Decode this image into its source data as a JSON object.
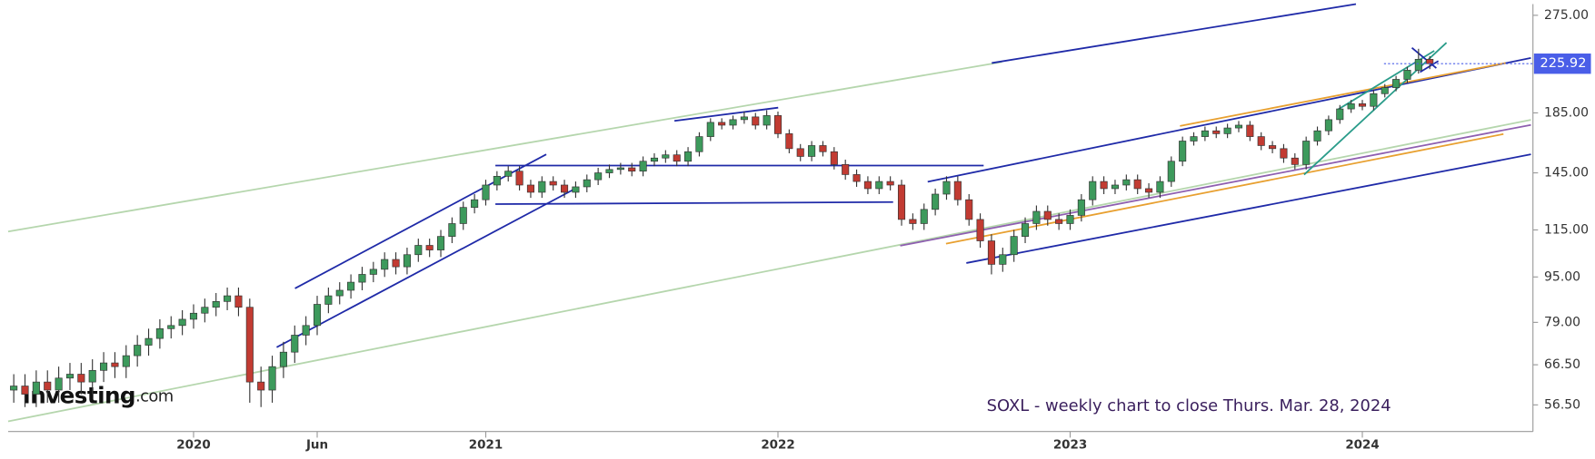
{
  "chart_data": {
    "type": "candlestick",
    "annotation": "SOXL - weekly chart to close Thurs. Mar. 28, 2024",
    "logo": "Investing",
    "logo_suffix": ".com",
    "log_scale": true,
    "up_color": "#3d9a5c",
    "down_color": "#c23b32",
    "ylim": [
      50.7,
      286.6
    ],
    "yticks": [
      {
        "value": 56.5,
        "label": "56.50"
      },
      {
        "value": 66.5,
        "label": "66.50"
      },
      {
        "value": 79,
        "label": "79.00"
      },
      {
        "value": 95,
        "label": "95.00"
      },
      {
        "value": 115,
        "label": "115.00"
      },
      {
        "value": 145,
        "label": "145.00"
      },
      {
        "value": 185,
        "label": "185.00"
      },
      {
        "value": 275,
        "label": "275.00"
      }
    ],
    "xlim": [
      -0.5,
      135
    ],
    "xticks": [
      {
        "value": 16,
        "label": "2020"
      },
      {
        "value": 27,
        "label": "Jun"
      },
      {
        "value": 42,
        "label": "2021"
      },
      {
        "value": 68,
        "label": "2022"
      },
      {
        "value": 94,
        "label": "2023"
      },
      {
        "value": 120,
        "label": "2024"
      }
    ],
    "open": [
      60,
      61,
      59,
      62,
      60,
      63,
      64,
      62,
      65,
      67,
      66,
      69,
      72,
      74,
      77,
      78,
      80,
      82,
      84,
      86,
      88,
      84,
      62,
      60,
      66,
      70,
      75,
      78,
      85,
      88,
      90,
      93,
      96,
      98,
      102,
      99,
      104,
      108,
      106,
      112,
      118,
      126,
      130,
      138,
      143,
      146,
      138,
      134,
      140,
      138,
      134,
      137,
      141,
      145,
      147,
      148,
      146,
      152,
      154,
      156,
      152,
      158,
      168,
      178,
      176,
      180,
      182,
      176,
      183,
      170,
      160,
      155,
      162,
      158,
      150,
      144,
      140,
      136,
      140,
      138,
      120,
      118,
      125,
      133,
      140,
      130,
      120,
      110,
      100,
      104,
      112,
      118,
      124,
      120,
      118,
      122,
      130,
      140,
      136,
      138,
      141,
      136,
      134,
      140,
      152,
      165,
      168,
      172,
      170,
      174,
      176,
      168,
      162,
      160,
      154,
      150,
      165,
      172,
      180,
      188,
      192,
      190,
      200,
      205,
      212,
      220,
      230
    ],
    "high": [
      64,
      64,
      65,
      65,
      66,
      67,
      67,
      68,
      70,
      70,
      72,
      75,
      77,
      80,
      81,
      83,
      85,
      87,
      89,
      91,
      91,
      87,
      66,
      69,
      73,
      78,
      81,
      88,
      91,
      93,
      96,
      99,
      101,
      105,
      105,
      107,
      111,
      111,
      115,
      121,
      129,
      133,
      141,
      146,
      149,
      149,
      141,
      143,
      143,
      141,
      140,
      144,
      148,
      150,
      151,
      151,
      155,
      157,
      159,
      159,
      161,
      171,
      181,
      181,
      183,
      186,
      185,
      187,
      186,
      173,
      163,
      165,
      165,
      161,
      153,
      147,
      143,
      143,
      143,
      141,
      123,
      128,
      136,
      143,
      143,
      133,
      123,
      113,
      107,
      115,
      121,
      127,
      127,
      123,
      125,
      133,
      143,
      143,
      141,
      144,
      144,
      139,
      143,
      155,
      168,
      171,
      175,
      175,
      177,
      179,
      179,
      171,
      165,
      163,
      157,
      168,
      175,
      183,
      191,
      195,
      195,
      203,
      208,
      215,
      223,
      240,
      233
    ],
    "low": [
      57,
      56,
      56,
      57,
      57,
      60,
      59,
      59,
      62,
      63,
      63,
      66,
      69,
      71,
      74,
      75,
      77,
      79,
      81,
      83,
      81,
      57,
      56,
      57,
      63,
      67,
      72,
      75,
      82,
      85,
      87,
      90,
      93,
      95,
      96,
      96,
      101,
      103,
      103,
      109,
      115,
      123,
      127,
      135,
      140,
      135,
      131,
      131,
      135,
      131,
      131,
      134,
      138,
      142,
      144,
      143,
      143,
      149,
      151,
      149,
      149,
      155,
      165,
      173,
      173,
      177,
      173,
      173,
      167,
      157,
      152,
      152,
      155,
      147,
      141,
      137,
      133,
      133,
      135,
      117,
      115,
      115,
      122,
      130,
      127,
      117,
      107,
      96,
      97,
      101,
      109,
      115,
      117,
      115,
      115,
      119,
      127,
      133,
      133,
      135,
      133,
      131,
      131,
      137,
      149,
      162,
      165,
      167,
      167,
      171,
      165,
      159,
      157,
      151,
      147,
      147,
      162,
      169,
      177,
      185,
      187,
      187,
      197,
      202,
      209,
      217,
      221
    ],
    "close": [
      61,
      59,
      62,
      60,
      63,
      64,
      62,
      65,
      67,
      66,
      69,
      72,
      74,
      77,
      78,
      80,
      82,
      84,
      86,
      88,
      84,
      62,
      60,
      66,
      70,
      75,
      78,
      85,
      88,
      90,
      93,
      96,
      98,
      102,
      99,
      104,
      108,
      106,
      112,
      118,
      126,
      130,
      138,
      143,
      146,
      138,
      134,
      140,
      138,
      134,
      137,
      141,
      145,
      147,
      148,
      146,
      152,
      154,
      156,
      152,
      158,
      168,
      178,
      176,
      180,
      182,
      176,
      183,
      170,
      160,
      155,
      162,
      158,
      150,
      144,
      140,
      136,
      140,
      138,
      120,
      118,
      125,
      133,
      140,
      130,
      120,
      110,
      100,
      104,
      112,
      118,
      124,
      120,
      118,
      122,
      130,
      140,
      136,
      138,
      141,
      136,
      134,
      140,
      152,
      165,
      168,
      172,
      170,
      174,
      176,
      168,
      162,
      160,
      154,
      150,
      165,
      172,
      180,
      188,
      192,
      190,
      200,
      205,
      212,
      220,
      230,
      225.92
    ]
  }
}
